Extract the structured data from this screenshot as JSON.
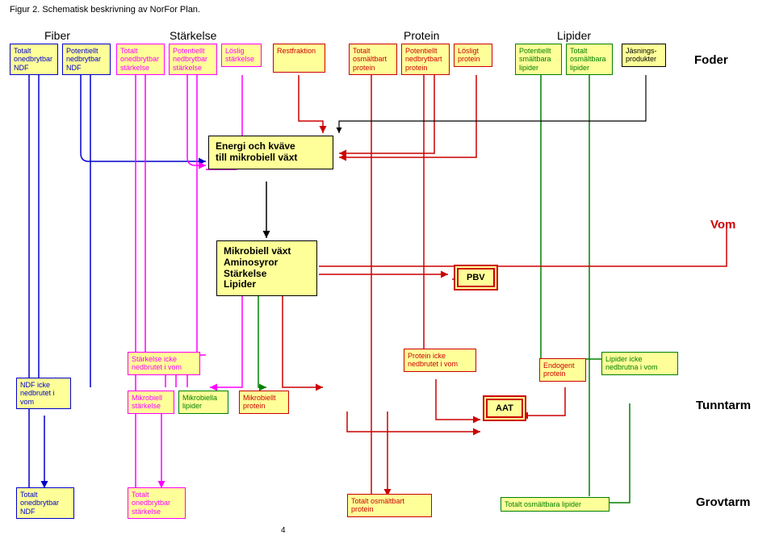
{
  "caption": "Figur 2. Schematisk beskrivning av NorFor Plan.",
  "headings": {
    "fiber": "Fiber",
    "starkelse": "Stärkelse",
    "protein": "Protein",
    "lipider": "Lipider"
  },
  "bigLabels": {
    "foder": "Foder",
    "vom": "Vom",
    "tunntarm": "Tunntarm",
    "grovtarm": "Grovtarm"
  },
  "top": {
    "b1": "Totalt\nonedbrytbar\nNDF",
    "b2": "Potentiellt\nnedbrytbar\nNDF",
    "b3": "Totalt\nonedbrytbar\nstärkelse",
    "b4": "Potentiellt\nnedbrytbar\nstärkelse",
    "b5": "Löslig\nstärkelse",
    "b6": "Restfraktion",
    "b7": "Totalt\nosmältbart\nprotein",
    "b8": "Potentiellt\nnedbrytbart\nprotein",
    "b9": "Lösligt\nprotein",
    "b10": "Potentiellt\nsmältbara\nlipider",
    "b11": "Totalt\nosmältbara\nlipider",
    "b12": "Jäsnings-\nprodukter"
  },
  "mid": {
    "energi": "Energi och kväve\ntill mikrobiell växt",
    "mikro": "Mikrobiell växt\nAminosyror\nStärkelse\nLipider",
    "pbv": "PBV"
  },
  "row3": {
    "ndf": "NDF icke\nnedbrutet i\nvom",
    "stark": "Stärkelse icke\nnedbrutet i vom",
    "mikSt": "Mikrobiell\nstärkelse",
    "mikLi": "Mikrobiella\nlipider",
    "mikPr": "Mikrobiellt\nprotein",
    "prot": "Protein icke\nnedbrutet i vom",
    "endo": "Endogent\nprotein",
    "lip": "Lipider icke\nnedbrutna i vom",
    "aat": "AAT"
  },
  "row4": {
    "b1": "Totalt\nonedbrytbar\nNDF",
    "b2": "Totalt\nonedbrytbar\nstärkelse",
    "b3": "Totalt osmältbart\nprotein",
    "b4": "Totalt osmältbara lipider"
  },
  "pagenum": "4",
  "colors": {
    "blue": "#0000cc",
    "red": "#cc0000",
    "magenta": "#ff00ff",
    "green": "#008000",
    "black": "#000000"
  }
}
